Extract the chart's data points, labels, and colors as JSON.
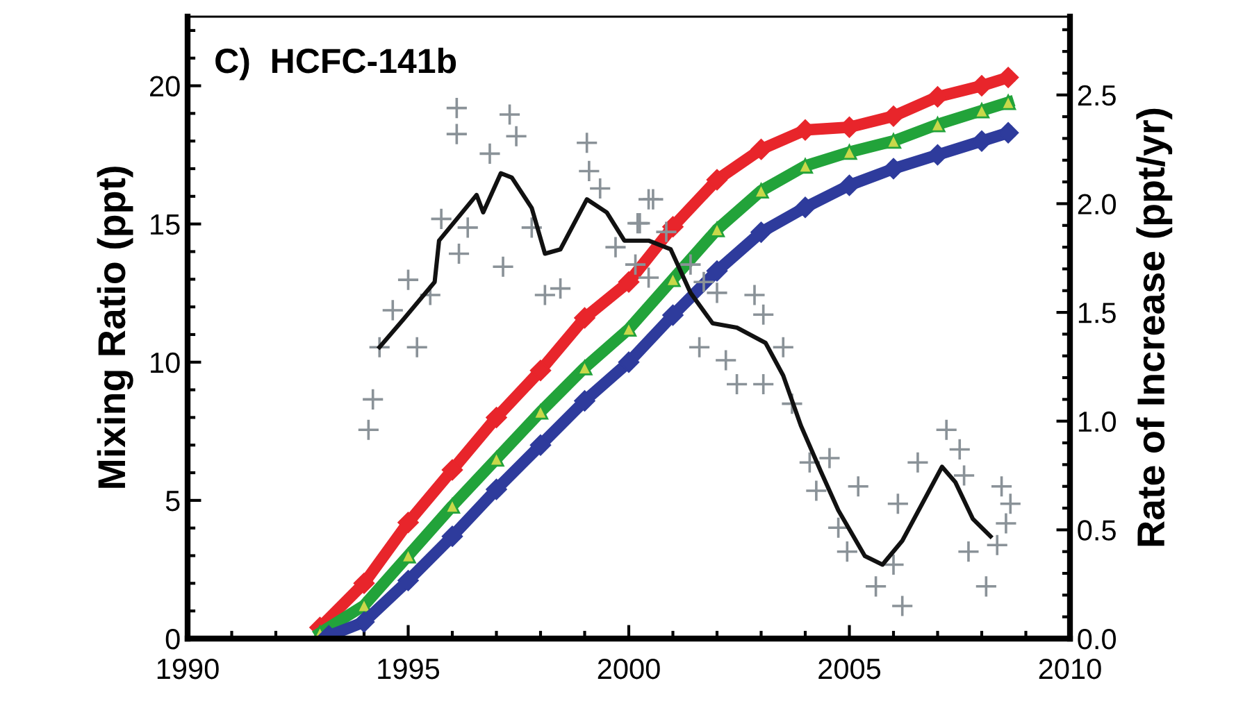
{
  "chart_data": {
    "type": "line",
    "title": "C)  HCFC-141b",
    "ylabel": "Mixing Ratio (ppt)",
    "y2label": "Rate of Increase (ppt/yr)",
    "xlim": [
      1990,
      2010
    ],
    "xticks": [
      1990,
      1995,
      2000,
      2005,
      2010
    ],
    "ylim": [
      0,
      22.5
    ],
    "yticks": [
      0,
      5,
      10,
      15,
      20
    ],
    "y2lim": [
      0,
      2.86
    ],
    "y2ticks": [
      {
        "value": 0,
        "label": "0.0"
      },
      0.5,
      {
        "value": 1,
        "label": "1.0"
      },
      1.5,
      {
        "value": 2,
        "label": "2.0"
      },
      2.5
    ],
    "grid": false,
    "legend": false,
    "series": [
      {
        "color": "#e8252b",
        "marker": "diamond",
        "x": [
          1993.0,
          1994,
          1995,
          1996,
          1997,
          1998,
          1999,
          2000,
          2001,
          2002,
          2003,
          2004,
          2005,
          2006,
          2007,
          2008,
          2008.6
        ],
        "values": [
          0.4,
          2.0,
          4.2,
          6.1,
          8.0,
          9.7,
          11.6,
          12.9,
          14.9,
          16.6,
          17.7,
          18.4,
          18.5,
          18.9,
          19.6,
          20.0,
          20.3
        ]
      },
      {
        "color": "#22a33a",
        "marker": "triangle",
        "x": [
          1993.0,
          1994,
          1995,
          1996,
          1997,
          1998,
          1999,
          2000,
          2001,
          2002,
          2003,
          2004,
          2005,
          2006,
          2007,
          2008,
          2008.6
        ],
        "values": [
          0.2,
          1.2,
          3.0,
          4.8,
          6.5,
          8.2,
          9.8,
          11.2,
          13.0,
          14.8,
          16.2,
          17.1,
          17.6,
          18.0,
          18.6,
          19.1,
          19.4
        ]
      },
      {
        "color": "#2e3b9c",
        "marker": "diamond",
        "x": [
          1993.2,
          1994,
          1995,
          1996,
          1997,
          1998,
          1999,
          2000,
          2001,
          2002,
          2003,
          2004,
          2005,
          2006,
          2007,
          2008,
          2008.6
        ],
        "values": [
          0.1,
          0.6,
          2.1,
          3.7,
          5.4,
          7.0,
          8.6,
          10.0,
          11.7,
          13.3,
          14.7,
          15.6,
          16.4,
          17.0,
          17.5,
          18.0,
          18.3
        ]
      },
      {
        "type": "scatter",
        "axis": "y2",
        "color": "#8a9298",
        "marker": "cross",
        "x": [
          1996.1,
          1996.1,
          1997.3,
          1997.45,
          1994.1,
          1994.2,
          1994.35,
          1996.85,
          1999.05,
          1999.1,
          1999.35,
          1997.15,
          1998.45,
          1998.1,
          1995.2,
          1995.0,
          1995.5,
          1994.65,
          1996.15,
          1996.35,
          1995.75,
          1997.8,
          2000.45,
          2000.25,
          1999.7,
          2000.55,
          2000.2,
          2000.85,
          2000.15,
          2000.45,
          2001.4,
          2001.7,
          2002.0,
          2002.85,
          2003.05,
          2001.6,
          2002.2,
          2002.45,
          2003.05,
          2003.5,
          2003.7,
          2004.1,
          2004.55,
          2004.25,
          2005.2,
          2004.75,
          2004.95,
          2005.6,
          2006.2,
          2006.1,
          2006.0,
          2006.55,
          2007.2,
          2007.5,
          2007.6,
          2007.7,
          2008.1,
          2008.45,
          2008.55,
          2008.65,
          2008.35
        ],
        "values": [
          2.44,
          2.32,
          2.41,
          2.31,
          0.96,
          1.1,
          1.34,
          2.23,
          2.28,
          2.15,
          2.07,
          1.71,
          1.61,
          1.58,
          1.34,
          1.65,
          1.58,
          1.51,
          1.77,
          1.89,
          1.93,
          1.89,
          2.02,
          1.91,
          1.8,
          2.02,
          1.91,
          1.87,
          1.72,
          1.66,
          1.72,
          1.64,
          1.59,
          1.58,
          1.49,
          1.34,
          1.28,
          1.17,
          1.17,
          1.34,
          1.08,
          0.81,
          0.83,
          0.68,
          0.7,
          0.51,
          0.4,
          0.24,
          0.15,
          0.62,
          0.34,
          0.81,
          0.96,
          0.87,
          0.75,
          0.4,
          0.24,
          0.7,
          0.53,
          0.62,
          0.43
        ]
      },
      {
        "type": "line",
        "axis": "y2",
        "color": "#111111",
        "marker": "none",
        "x": [
          1994.35,
          1994.9,
          1995.6,
          1995.7,
          1996.55,
          1996.7,
          1997.1,
          1997.35,
          1997.8,
          1998.1,
          1998.45,
          1999.05,
          1999.5,
          1999.9,
          2000.45,
          2000.95,
          2001.4,
          2001.9,
          2002.45,
          2003.1,
          2003.5,
          2003.9,
          2004.35,
          2004.75,
          2005.35,
          2005.75,
          2006.2,
          2006.65,
          2007.1,
          2007.4,
          2007.8,
          2008.2
        ],
        "values": [
          1.34,
          1.47,
          1.64,
          1.83,
          2.04,
          1.96,
          2.14,
          2.12,
          1.98,
          1.77,
          1.79,
          2.02,
          1.96,
          1.83,
          1.83,
          1.79,
          1.59,
          1.45,
          1.43,
          1.36,
          1.21,
          0.98,
          0.77,
          0.59,
          0.38,
          0.34,
          0.45,
          0.62,
          0.79,
          0.72,
          0.55,
          0.47
        ]
      }
    ]
  }
}
